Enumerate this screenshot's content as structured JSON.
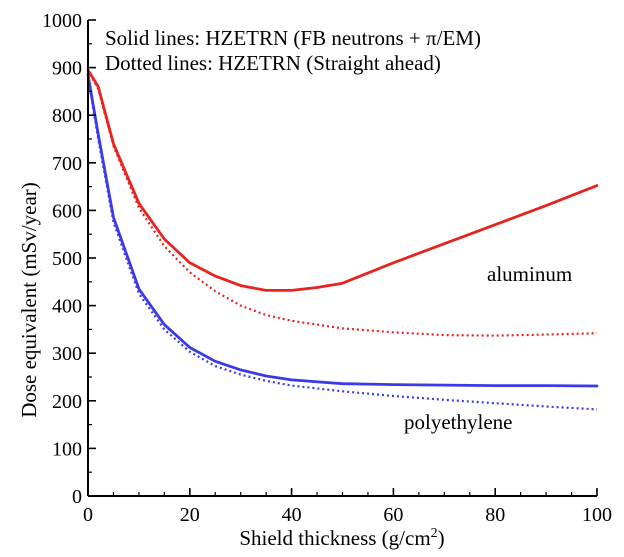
{
  "chart_data": {
    "type": "line",
    "title": "",
    "xlabel": "Shield thickness (g/cm",
    "xlabel_sup": "2",
    "xlabel_close": ")",
    "ylabel": "Dose equivalent (mSv/year)",
    "xlim": [
      0,
      100
    ],
    "ylim": [
      0,
      1000
    ],
    "xticks": [
      0,
      20,
      40,
      60,
      80,
      100
    ],
    "yticks": [
      0,
      100,
      200,
      300,
      400,
      500,
      600,
      700,
      800,
      900,
      1000
    ],
    "xtick_labels": [
      "0",
      "20",
      "40",
      "60",
      "80",
      "100"
    ],
    "ytick_labels": [
      "0",
      "100",
      "200",
      "300",
      "400",
      "500",
      "600",
      "700",
      "800",
      "900",
      "1000"
    ],
    "grid": false,
    "annotations": [
      "Solid lines: HZETRN (FB neutrons + π/EM)",
      "Dotted lines: HZETRN (Straight ahead)"
    ],
    "material_labels": [
      "aluminum",
      "polyethylene"
    ],
    "series": [
      {
        "material": "aluminum",
        "style": "solid",
        "color": "#e8231f",
        "x": [
          0,
          2,
          5,
          10,
          15,
          20,
          25,
          30,
          35,
          40,
          45,
          50,
          60,
          70,
          80,
          90,
          100
        ],
        "y": [
          895,
          860,
          740,
          615,
          540,
          490,
          462,
          442,
          432,
          432,
          438,
          447,
          490,
          530,
          570,
          610,
          652
        ]
      },
      {
        "material": "aluminum",
        "style": "dotted",
        "color": "#e8231f",
        "x": [
          0,
          2,
          5,
          10,
          15,
          20,
          25,
          30,
          35,
          40,
          50,
          60,
          70,
          80,
          90,
          100
        ],
        "y": [
          895,
          855,
          735,
          605,
          525,
          470,
          430,
          400,
          380,
          368,
          352,
          344,
          338,
          337,
          339,
          342
        ]
      },
      {
        "material": "polyethylene",
        "style": "solid",
        "color": "#3a3ae8",
        "x": [
          0,
          2,
          5,
          10,
          15,
          20,
          25,
          30,
          35,
          40,
          50,
          60,
          70,
          80,
          90,
          100
        ],
        "y": [
          885,
          760,
          585,
          435,
          360,
          312,
          283,
          265,
          252,
          244,
          236,
          234,
          233,
          232,
          232,
          231
        ]
      },
      {
        "material": "polyethylene",
        "style": "dotted",
        "color": "#3a3ae8",
        "x": [
          0,
          2,
          5,
          10,
          15,
          20,
          25,
          30,
          35,
          40,
          50,
          60,
          70,
          80,
          90,
          100
        ],
        "y": [
          880,
          750,
          575,
          425,
          350,
          303,
          273,
          255,
          242,
          232,
          220,
          210,
          202,
          195,
          188,
          182
        ]
      }
    ]
  }
}
